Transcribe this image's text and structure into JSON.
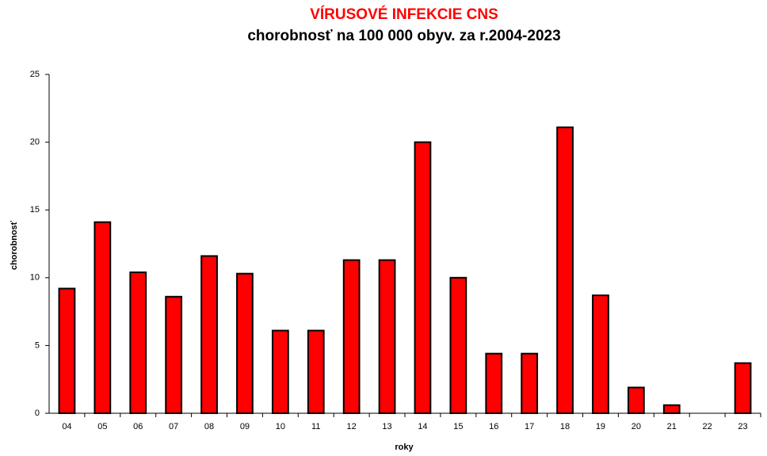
{
  "chart_data": {
    "type": "bar",
    "title": "VÍRUSOVÉ INFEKCIE CNS",
    "subtitle": "chorobnosť na 100 000 obyv. za r.2004-2023",
    "y_label": "chorobnosť",
    "x_label": "roky",
    "categories": [
      "04",
      "05",
      "06",
      "07",
      "08",
      "09",
      "10",
      "11",
      "12",
      "13",
      "14",
      "15",
      "16",
      "17",
      "18",
      "19",
      "20",
      "21",
      "22",
      "23"
    ],
    "values": [
      9.2,
      14.1,
      10.4,
      8.6,
      11.6,
      10.3,
      6.1,
      6.1,
      11.3,
      11.3,
      20.0,
      10.0,
      4.4,
      4.4,
      21.1,
      8.7,
      1.9,
      0.6,
      0,
      3.7
    ],
    "color": "#ff0000",
    "ylim": [
      0,
      25
    ],
    "yticks": [
      0,
      5,
      10,
      15,
      20,
      25
    ],
    "grid": false
  }
}
